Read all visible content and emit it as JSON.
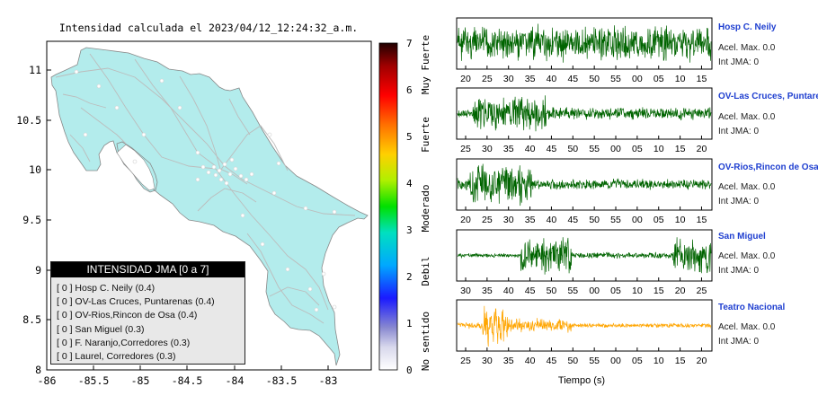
{
  "map": {
    "title": "Intensidad calculada el 2023/04/12_12:24:32_a.m.",
    "x_ticks": [
      "-86",
      "-85.5",
      "-85",
      "-84.5",
      "-84",
      "-83.5",
      "-83"
    ],
    "y_ticks": [
      "11",
      "10.5",
      "10",
      "9.5",
      "9",
      "8.5",
      "8"
    ],
    "land_color": "#b3ecec",
    "ocean_color": "#ffffff"
  },
  "colorbar": {
    "ticks": [
      "7",
      "6",
      "5",
      "4",
      "3",
      "2",
      "1",
      "0"
    ],
    "labels": [
      "Muy Fuerte",
      "Fuerte",
      "Moderado",
      "Debil",
      "No sentido"
    ]
  },
  "legend": {
    "title": "INTENSIDAD JMA [0 a 7]",
    "rows": [
      "[ 0 ]  Hosp C. Neily (0.4)",
      "[ 0 ]  OV-Las Cruces, Puntarenas (0.4)",
      "[ 0 ]  OV-Rios,Rincon de Osa (0.4)",
      "[ 0 ]  San Miguel (0.3)",
      "[ 0 ]  F. Naranjo,Corredores (0.3)",
      "[ 0 ]  Laurel, Corredores (0.3)"
    ]
  },
  "chart_data": [
    {
      "type": "line",
      "name": "Hosp C. Neily",
      "x_ticks": [
        "20",
        "25",
        "30",
        "35",
        "40",
        "45",
        "50",
        "55",
        "00",
        "05",
        "10",
        "15"
      ],
      "color": "#006400",
      "accel_label": "Acel. Max. 0.0",
      "jma_label": "Int JMA: 0"
    },
    {
      "type": "line",
      "name": "OV-Las Cruces, Puntarenas",
      "x_ticks": [
        "25",
        "30",
        "35",
        "40",
        "45",
        "50",
        "55",
        "00",
        "05",
        "10",
        "15",
        "20"
      ],
      "color": "#006400",
      "accel_label": "Acel. Max. 0.0",
      "jma_label": "Int JMA: 0"
    },
    {
      "type": "line",
      "name": "OV-Rios,Rincon de Osa",
      "x_ticks": [
        "20",
        "25",
        "30",
        "35",
        "40",
        "45",
        "50",
        "55",
        "00",
        "05",
        "10",
        "15"
      ],
      "color": "#006400",
      "accel_label": "Acel. Max. 0.0",
      "jma_label": "Int JMA: 0"
    },
    {
      "type": "line",
      "name": "San Miguel",
      "x_ticks": [
        "30",
        "35",
        "40",
        "45",
        "50",
        "55",
        "00",
        "05",
        "10",
        "15",
        "20",
        "25"
      ],
      "color": "#006400",
      "accel_label": "Acel. Max. 0.0",
      "jma_label": "Int JMA: 0"
    },
    {
      "type": "line",
      "name": "Teatro Nacional",
      "x_ticks": [
        "25",
        "30",
        "35",
        "40",
        "45",
        "50",
        "55",
        "00",
        "05",
        "10",
        "15",
        "20"
      ],
      "xlabel": "Tiempo (s)",
      "color": "#ffa500",
      "accel_label": "Acel. Max. 0.0",
      "jma_label": "Int JMA: 0"
    }
  ]
}
